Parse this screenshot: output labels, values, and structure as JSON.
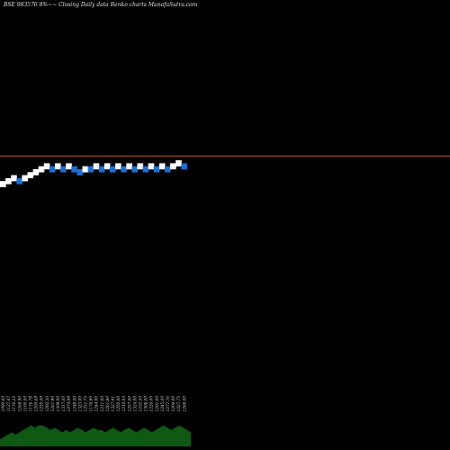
{
  "chart_data": {
    "type": "renko",
    "title": "BSE 983576  8%~~  Closing Daily data  Renko  charts MunafaSutra.com",
    "reference_line": {
      "value": 50.5,
      "color": "#c1502a"
    },
    "ylim": [
      0,
      100
    ],
    "colors": {
      "up": "#ffffff",
      "down": "#1a6fd6",
      "volume": "#0f5a12"
    },
    "bricks": [
      {
        "dir": "up",
        "value": 40
      },
      {
        "dir": "up",
        "value": 41
      },
      {
        "dir": "up",
        "value": 42
      },
      {
        "dir": "down",
        "value": 41
      },
      {
        "dir": "up",
        "value": 42
      },
      {
        "dir": "up",
        "value": 43
      },
      {
        "dir": "up",
        "value": 44
      },
      {
        "dir": "up",
        "value": 45
      },
      {
        "dir": "up",
        "value": 46
      },
      {
        "dir": "down",
        "value": 45
      },
      {
        "dir": "up",
        "value": 46
      },
      {
        "dir": "down",
        "value": 45
      },
      {
        "dir": "up",
        "value": 46
      },
      {
        "dir": "down",
        "value": 45
      },
      {
        "dir": "down",
        "value": 44
      },
      {
        "dir": "up",
        "value": 45
      },
      {
        "dir": "down",
        "value": 45
      },
      {
        "dir": "up",
        "value": 46
      },
      {
        "dir": "down",
        "value": 45
      },
      {
        "dir": "up",
        "value": 46
      },
      {
        "dir": "down",
        "value": 45
      },
      {
        "dir": "up",
        "value": 46
      },
      {
        "dir": "down",
        "value": 45
      },
      {
        "dir": "up",
        "value": 46
      },
      {
        "dir": "down",
        "value": 45
      },
      {
        "dir": "up",
        "value": 46
      },
      {
        "dir": "down",
        "value": 45
      },
      {
        "dir": "up",
        "value": 46
      },
      {
        "dir": "down",
        "value": 45
      },
      {
        "dir": "up",
        "value": 46
      },
      {
        "dir": "down",
        "value": 45
      },
      {
        "dir": "up",
        "value": 46
      },
      {
        "dir": "up",
        "value": 47
      },
      {
        "dir": "down",
        "value": 46
      }
    ],
    "x_labels": [
      "1090.00",
      "1127.47",
      "1176.22",
      "1268.90",
      "1100.00",
      "1176.78",
      "1204.69",
      "1250.00",
      "1292.30",
      "1261.90",
      "1308.00",
      "1317.60",
      "1274.99",
      "1248.00",
      "1323.00",
      "1251.75",
      "1176.90",
      "1244.00",
      "1211.60",
      "1261.80",
      "1327.91",
      "1250.00",
      "1210.93",
      "1257.00",
      "1324.00",
      "1232.50",
      "1308.00",
      "1226.00",
      "1201.00",
      "1245.00",
      "1277.76",
      "1204.00",
      "1227.75",
      "1268.00"
    ],
    "volume": [
      3,
      4,
      5,
      6,
      5,
      6,
      7,
      8,
      9,
      8,
      9,
      9,
      8,
      7,
      8,
      7,
      6,
      7,
      6,
      7,
      8,
      7,
      6,
      7,
      8,
      7,
      7,
      6,
      7,
      8,
      7,
      6,
      7,
      8,
      7,
      6,
      7,
      8,
      7,
      6,
      7,
      8,
      9,
      8,
      7,
      8,
      9,
      8,
      7,
      6
    ]
  }
}
